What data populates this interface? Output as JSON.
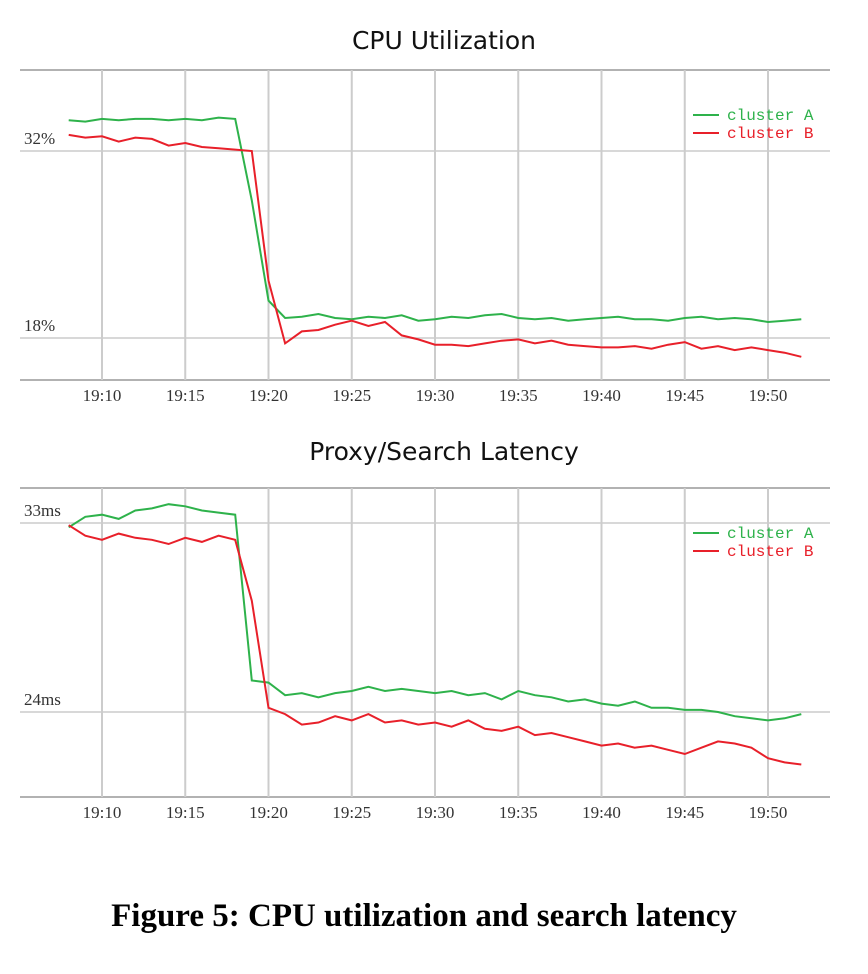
{
  "chart_data": [
    {
      "type": "line",
      "title": "CPU Utilization",
      "categories": [
        null,
        null,
        "19:10",
        null,
        null,
        null,
        null,
        "19:15",
        null,
        null,
        null,
        null,
        "19:20",
        null,
        null,
        null,
        null,
        "19:25",
        null,
        null,
        null,
        null,
        "19:30",
        null,
        null,
        null,
        null,
        "19:35",
        null,
        null,
        null,
        null,
        "19:40",
        null,
        null,
        null,
        null,
        "19:45",
        null,
        null,
        null,
        null,
        "19:50",
        null,
        null
      ],
      "ylim": [
        14.86,
        38.06
      ],
      "yticks": [
        {
          "value": 32,
          "label": "32%"
        },
        {
          "value": 18,
          "label": "18%"
        }
      ],
      "grid": true,
      "legend": "upper right",
      "series": [
        {
          "name": "cluster A",
          "color": "#2eb24b",
          "values": [
            34.3,
            34.2,
            34.4,
            34.3,
            34.4,
            34.4,
            34.3,
            34.4,
            34.3,
            34.5,
            34.4,
            28.3,
            20.8,
            19.5,
            19.6,
            19.8,
            19.5,
            19.4,
            19.6,
            19.5,
            19.7,
            19.3,
            19.4,
            19.6,
            19.5,
            19.7,
            19.8,
            19.5,
            19.4,
            19.5,
            19.3,
            19.4,
            19.5,
            19.6,
            19.4,
            19.4,
            19.3,
            19.5,
            19.6,
            19.4,
            19.5,
            19.4,
            19.2,
            19.3,
            19.4
          ]
        },
        {
          "name": "cluster B",
          "color": "#e8202a",
          "values": [
            33.2,
            33.0,
            33.1,
            32.7,
            33.0,
            32.9,
            32.4,
            32.6,
            32.3,
            32.2,
            32.1,
            32.0,
            22.3,
            17.6,
            18.5,
            18.6,
            19.0,
            19.3,
            18.9,
            19.2,
            18.2,
            17.9,
            17.5,
            17.5,
            17.4,
            17.6,
            17.8,
            17.9,
            17.6,
            17.8,
            17.5,
            17.4,
            17.3,
            17.3,
            17.4,
            17.2,
            17.5,
            17.7,
            17.2,
            17.4,
            17.1,
            17.3,
            17.1,
            16.9,
            16.6
          ]
        }
      ]
    },
    {
      "type": "line",
      "title": "Proxy/Search Latency",
      "categories": [
        null,
        null,
        "19:10",
        null,
        null,
        null,
        null,
        "19:15",
        null,
        null,
        null,
        null,
        "19:20",
        null,
        null,
        null,
        null,
        "19:25",
        null,
        null,
        null,
        null,
        "19:30",
        null,
        null,
        null,
        null,
        "19:35",
        null,
        null,
        null,
        null,
        "19:40",
        null,
        null,
        null,
        null,
        "19:45",
        null,
        null,
        null,
        null,
        "19:50",
        null,
        null
      ],
      "ylim": [
        19.95,
        34.67
      ],
      "yticks": [
        {
          "value": 33,
          "label": "33ms"
        },
        {
          "value": 24,
          "label": "24ms"
        }
      ],
      "grid": true,
      "legend": "upper right",
      "series": [
        {
          "name": "cluster A",
          "color": "#2eb24b",
          "values": [
            32.8,
            33.3,
            33.4,
            33.2,
            33.6,
            33.7,
            33.9,
            33.8,
            33.6,
            33.5,
            33.4,
            25.5,
            25.4,
            24.8,
            24.9,
            24.7,
            24.9,
            25.0,
            25.2,
            25.0,
            25.1,
            25.0,
            24.9,
            25.0,
            24.8,
            24.9,
            24.6,
            25.0,
            24.8,
            24.7,
            24.5,
            24.6,
            24.4,
            24.3,
            24.5,
            24.2,
            24.2,
            24.1,
            24.1,
            24.0,
            23.8,
            23.7,
            23.6,
            23.7,
            23.9
          ]
        },
        {
          "name": "cluster B",
          "color": "#e8202a",
          "values": [
            32.9,
            32.4,
            32.2,
            32.5,
            32.3,
            32.2,
            32.0,
            32.3,
            32.1,
            32.4,
            32.2,
            29.3,
            24.2,
            23.9,
            23.4,
            23.5,
            23.8,
            23.6,
            23.9,
            23.5,
            23.6,
            23.4,
            23.5,
            23.3,
            23.6,
            23.2,
            23.1,
            23.3,
            22.9,
            23.0,
            22.8,
            22.6,
            22.4,
            22.5,
            22.3,
            22.4,
            22.2,
            22.0,
            22.3,
            22.6,
            22.5,
            22.3,
            21.8,
            21.6,
            21.5
          ]
        }
      ]
    }
  ],
  "caption": "Figure 5: CPU utilization and search latency"
}
